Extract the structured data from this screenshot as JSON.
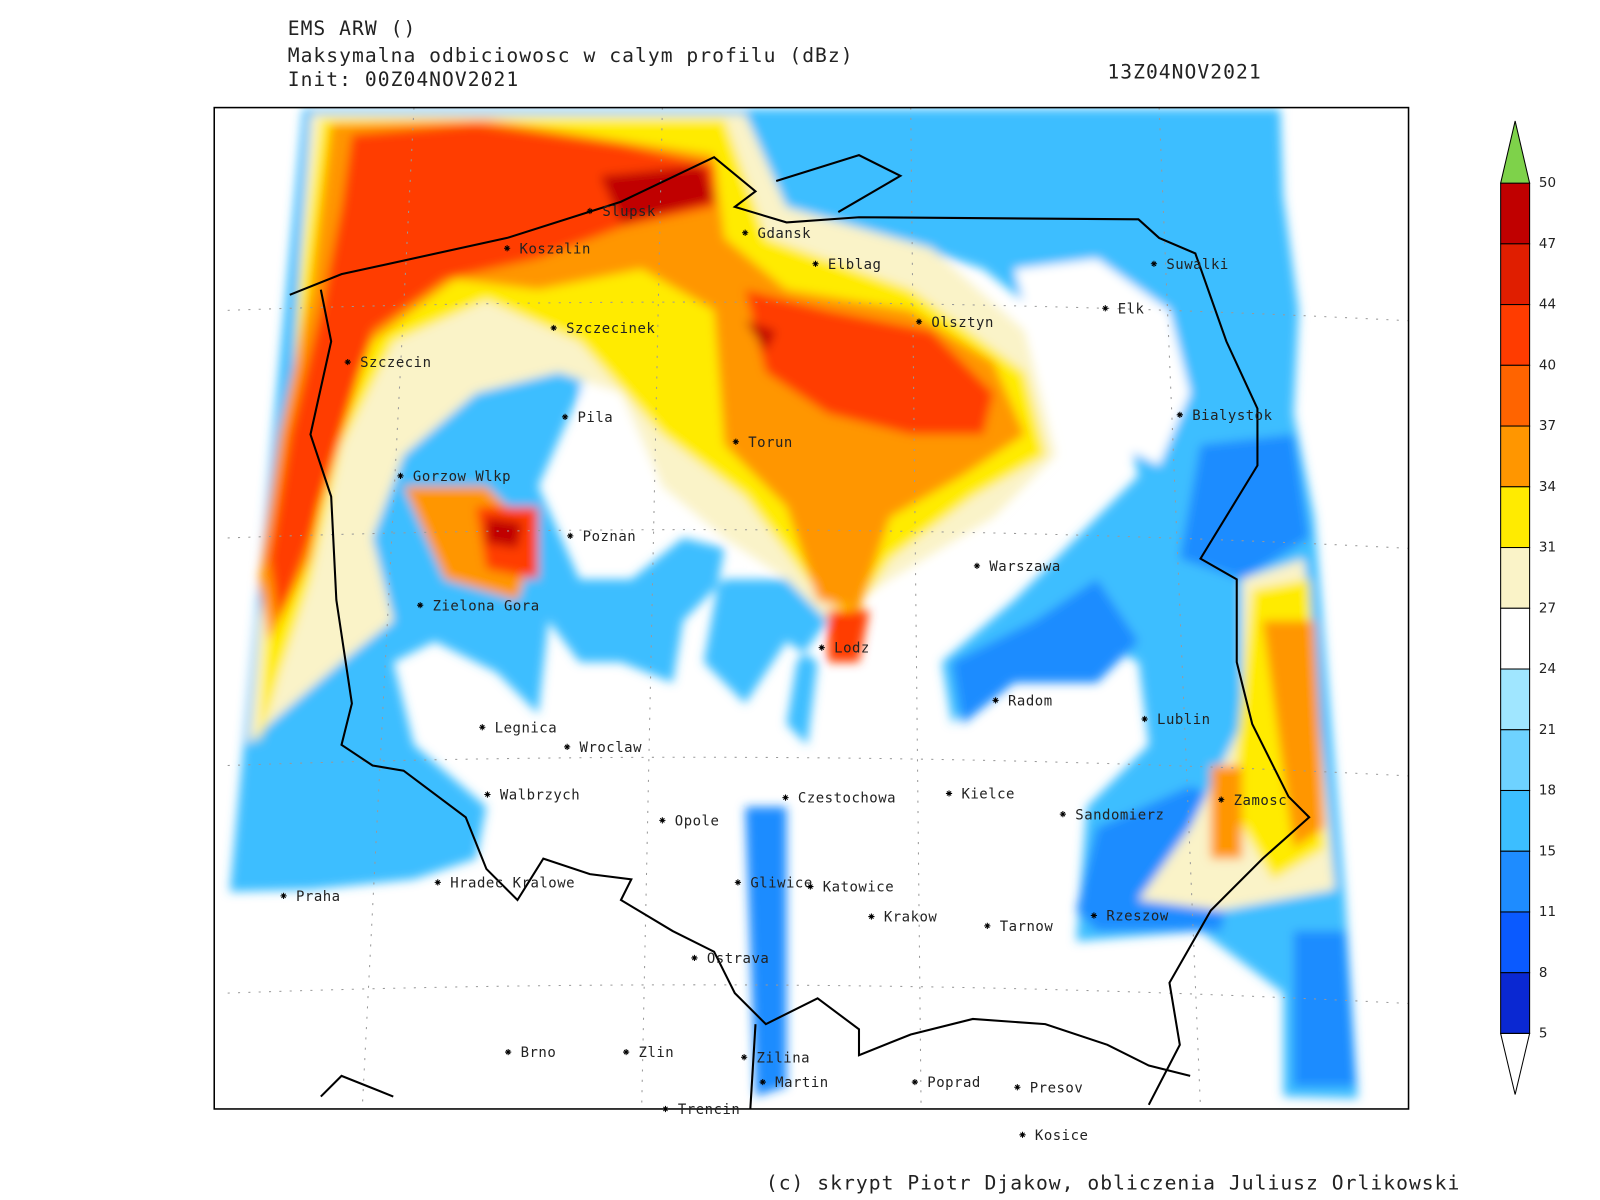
{
  "header": {
    "model": "EMS ARW ()",
    "title": "Maksymalna odbiciowosc w calym profilu (dBz)",
    "init": "Init: 00Z04NOV2021",
    "valid": "13Z04NOV2021"
  },
  "cities": [
    "Slupsk",
    "Koszalin",
    "Gdansk",
    "Elblag",
    "Suwalki",
    "Elk",
    "Olsztyn",
    "Szczecinek",
    "Szczecin",
    "Bialystok",
    "Pila",
    "Torun",
    "Gorzow Wlkp",
    "Poznan",
    "Warszawa",
    "Zielona Gora",
    "Lodz",
    "Radom",
    "Lublin",
    "Legnica",
    "Wroclaw",
    "Walbrzych",
    "Czestochowa",
    "Kielce",
    "Zamosc",
    "Sandomierz",
    "Opole",
    "Gliwice",
    "Katowice",
    "Hradec Kralowe",
    "Praha",
    "Krakow",
    "Tarnow",
    "Rzeszow",
    "Ostrava",
    "Brno",
    "Zlin",
    "Zilina",
    "Martin",
    "Poprad",
    "Presov",
    "Trencin",
    "Kosice"
  ],
  "colorbar": {
    "levels": [
      50,
      47,
      44,
      40,
      37,
      34,
      31,
      27,
      24,
      21,
      18,
      15,
      11,
      8,
      5
    ],
    "colors": [
      "#c00000",
      "#e01e00",
      "#ff3c00",
      "#ff6400",
      "#ff9600",
      "#ffeb00",
      "#faf3c8",
      "#ffffff",
      "#a0e6ff",
      "#6ed2ff",
      "#3cbeff",
      "#1e8cff",
      "#0a5aff",
      "#0a28d2"
    ],
    "over_color": "#7ed24a",
    "under_color": "#ffffff"
  },
  "footer": "(c) skrypt Piotr Djakow, obliczenia Juliusz Orlikowski"
}
